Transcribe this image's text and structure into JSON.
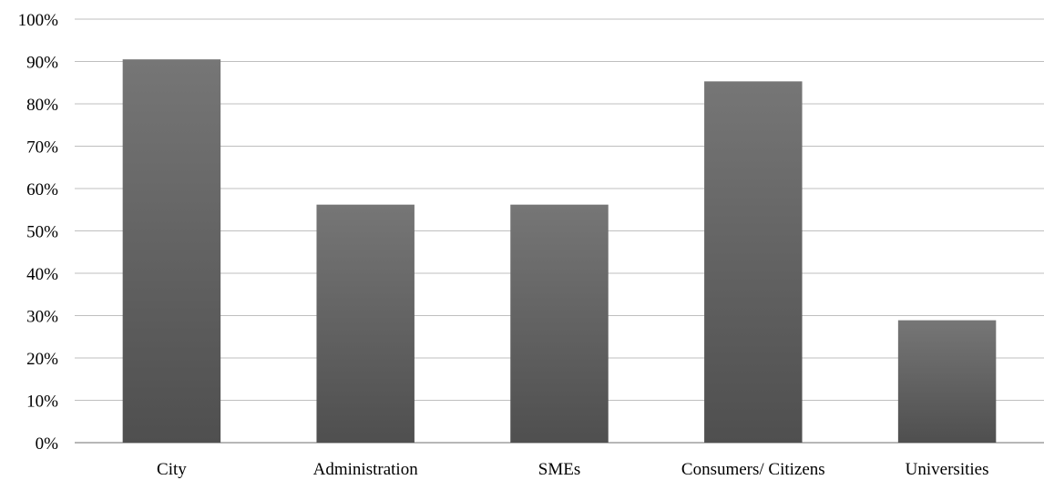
{
  "chart_data": {
    "type": "bar",
    "categories": [
      "City",
      "Administration",
      "SMEs",
      "Consumers/ Citizens",
      "Universities"
    ],
    "values": [
      90.5,
      56.2,
      56.2,
      85.3,
      28.9
    ],
    "ylim": [
      0,
      100
    ],
    "yticks": [
      "0%",
      "10%",
      "20%",
      "30%",
      "40%",
      "50%",
      "60%",
      "70%",
      "80%",
      "90%",
      "100%"
    ],
    "grid": true,
    "legend": "none",
    "bar_color_top": "#767676",
    "bar_color_bottom": "#4f4f4f"
  }
}
